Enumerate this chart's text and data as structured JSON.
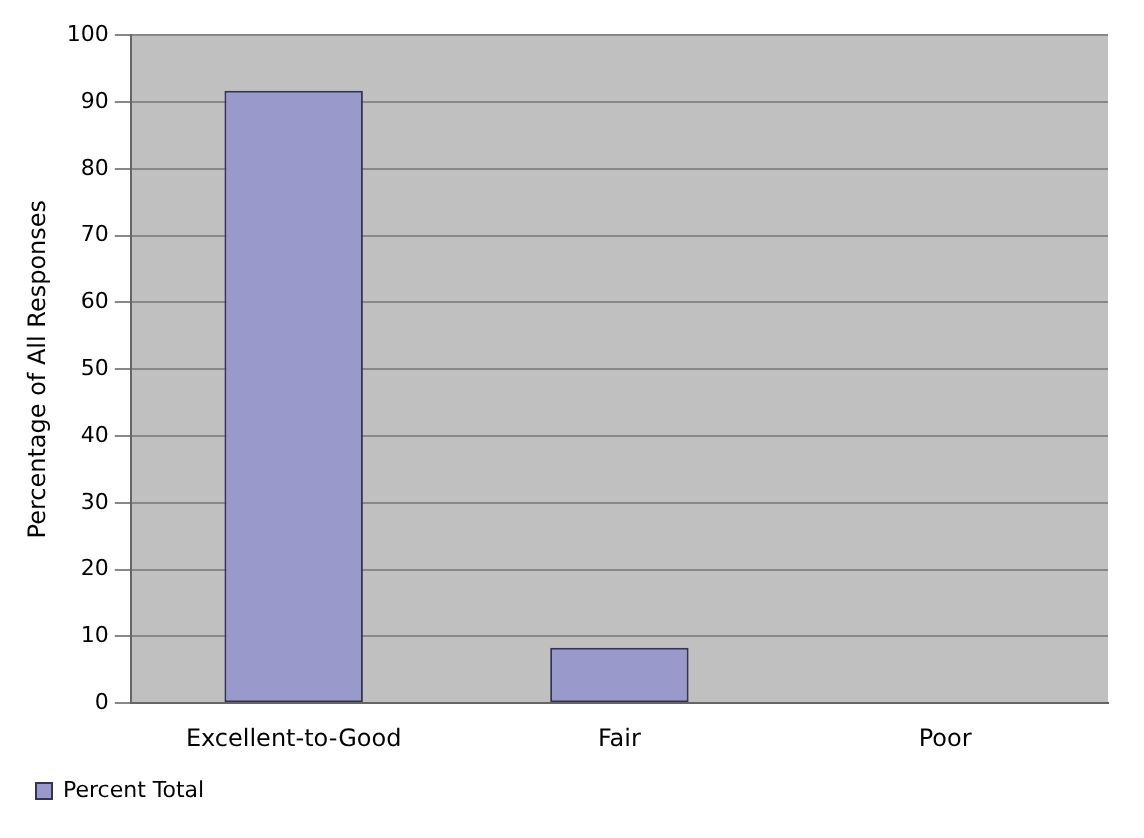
{
  "chart_data": {
    "type": "bar",
    "ylabel": "Percentage of All Responses",
    "categories": [
      "Excellent-to-Good",
      "Fair",
      "Poor"
    ],
    "series": [
      {
        "name": "Percent Total",
        "color": "#9999cc",
        "values": [
          91.7,
          8.3,
          0
        ]
      }
    ],
    "ylim": [
      0,
      100
    ],
    "yticks": [
      0,
      10,
      20,
      30,
      40,
      50,
      60,
      70,
      80,
      90,
      100
    ],
    "grid": "y",
    "legend": "bottom left"
  }
}
